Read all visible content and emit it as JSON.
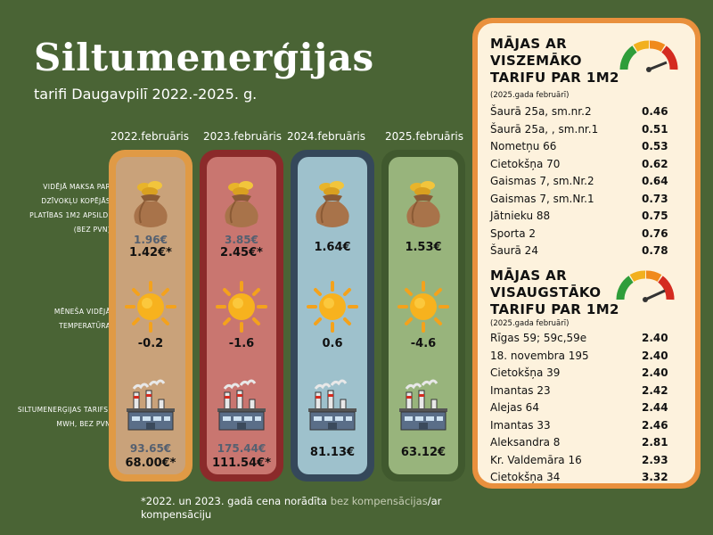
{
  "title": "Siltumenerģijas",
  "subtitle": "tarifi Daugavpilī  2022.-2025. g.",
  "row_labels": {
    "cost": "VIDĒJĀ MAKSA PAR DZĪVOKĻU KOPĒJĀS PLATĪBAS 1M2 APSILDI (BEZ PVN)",
    "temperature": "MĒNEŠA VIDĒJĀ TEMPERATŪRA",
    "tariff": "SILTUMENERĢIJAS TARIFS, MWH, BEZ PVN"
  },
  "columns": [
    {
      "header": "2022.februāris",
      "cost_old": "1.96€",
      "cost": "1.42€*",
      "temp": "-0.2",
      "tariff_old": "93.65€",
      "tariff": "68.00€*",
      "outer": "#e09a45",
      "inner": "#c9a27a"
    },
    {
      "header": "2023.februāris",
      "cost_old": "3.85€",
      "cost": "2.45€*",
      "temp": "-1.6",
      "tariff_old": "175.44€",
      "tariff": "111.54€*",
      "outer": "#8b2a2a",
      "inner": "#c97670"
    },
    {
      "header": "2024.februāris",
      "cost_old": "",
      "cost": "1.64€",
      "temp": "0.6",
      "tariff_old": "",
      "tariff": "81.13€",
      "outer": "#35485a",
      "inner": "#9ec1cc"
    },
    {
      "header": "2025.februāris",
      "cost_old": "",
      "cost": "1.53€",
      "temp": "-4.6",
      "tariff_old": "",
      "tariff": "63.12€",
      "outer": "#40592e",
      "inner": "#98b47c"
    }
  ],
  "lowest": {
    "heading": [
      "MĀJAS AR",
      "VISZEMĀKO",
      "TARIFU PAR 1M2"
    ],
    "sub": "(2025.gada februārī)",
    "rows": [
      {
        "name": "Šaurā 25a, sm.nr.2",
        "value": "0.46"
      },
      {
        "name": "Šaurā 25a, , sm.nr.1",
        "value": "0.51"
      },
      {
        "name": "Nometņu 66",
        "value": "0.53"
      },
      {
        "name": "Cietokšņa 70",
        "value": "0.62"
      },
      {
        "name": "Gaismas 7, sm.Nr.2",
        "value": "0.64"
      },
      {
        "name": "Gaismas 7, sm.Nr.1",
        "value": "0.73"
      },
      {
        "name": "Jātnieku 88",
        "value": "0.75"
      },
      {
        "name": "Sporta 2",
        "value": "0.76"
      },
      {
        "name": "Šaurā 24",
        "value": "0.78"
      }
    ]
  },
  "highest": {
    "heading": [
      "MĀJAS AR",
      "VISAUGSTĀKO",
      "TARIFU PAR 1M2"
    ],
    "sub": "(2025.gada februārī)",
    "rows": [
      {
        "name": "Rīgas 59; 59c,59e",
        "value": "2.40"
      },
      {
        "name": "18. novembra 195",
        "value": "2.40"
      },
      {
        "name": "Cietokšņa 39",
        "value": "2.40"
      },
      {
        "name": "Imantas 23",
        "value": "2.42"
      },
      {
        "name": "Alejas 64",
        "value": "2.44"
      },
      {
        "name": "Imantas 33",
        "value": "2.46"
      },
      {
        "name": "Aleksandra 8",
        "value": "2.81"
      },
      {
        "name": "Kr. Valdemāra 16",
        "value": "2.93"
      },
      {
        "name": "Cietokšņa 34",
        "value": "3.32"
      }
    ]
  },
  "footnote": {
    "prefix": "*2022. un 2023. gadā cena norādīta ",
    "highlight": "bez kompensācijas",
    "suffix": "/ar kompensāciju"
  }
}
